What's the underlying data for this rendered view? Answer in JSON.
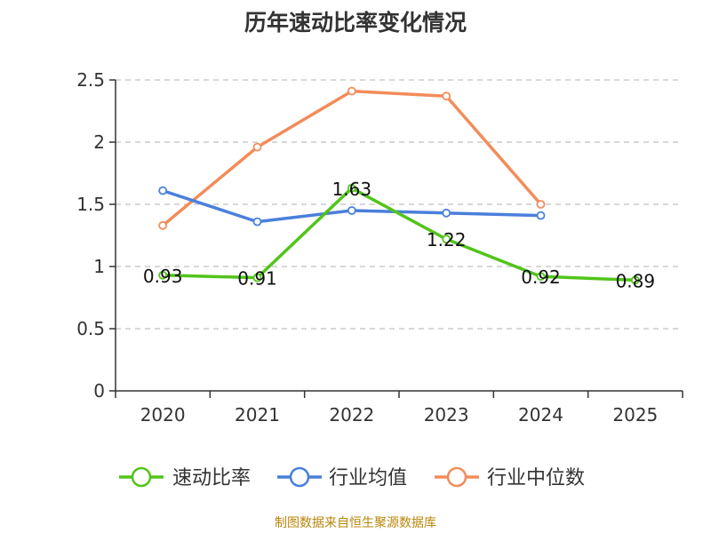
{
  "chart_data": {
    "type": "line",
    "title": "历年速动比率变化情况",
    "categories": [
      "2020",
      "2021",
      "2022",
      "2023",
      "2024",
      "2025"
    ],
    "ylim": [
      0,
      2.5
    ],
    "yticks": [
      "0",
      "0.5",
      "1",
      "1.5",
      "2",
      "2.5"
    ],
    "ytick_values": [
      0,
      0.5,
      1,
      1.5,
      2,
      2.5
    ],
    "grid": true,
    "legend_position": "bottom",
    "series": [
      {
        "name": "速动比率",
        "color": "#52c41a",
        "values": [
          0.93,
          0.91,
          1.63,
          1.22,
          0.92,
          0.89
        ],
        "labels": [
          "0.93",
          "0.91",
          "1.63",
          "1.22",
          "0.92",
          "0.89"
        ]
      },
      {
        "name": "行业均值",
        "color": "#4a7fdc",
        "values": [
          1.61,
          1.36,
          1.45,
          1.43,
          1.41,
          null
        ]
      },
      {
        "name": "行业中位数",
        "color": "#f28c5a",
        "values": [
          1.33,
          1.96,
          2.41,
          2.37,
          1.5,
          null
        ]
      }
    ],
    "source": "制图数据来自恒生聚源数据库"
  }
}
